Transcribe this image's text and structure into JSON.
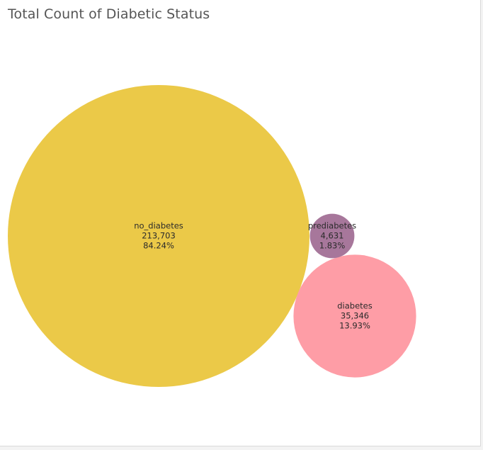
{
  "title": "Total Count of Diabetic Status",
  "chart_data": {
    "type": "bubble",
    "title": "Total Count of Diabetic Status",
    "series": [
      {
        "name": "no_diabetes",
        "count": 213703,
        "count_label": "213,703",
        "percent_label": "84.24%",
        "color": "#EBC948"
      },
      {
        "name": "prediabetes",
        "count": 4631,
        "count_label": "4,631",
        "percent_label": "1.83%",
        "color": "#A7779B"
      },
      {
        "name": "diabetes",
        "count": 35346,
        "count_label": "35,346",
        "percent_label": "13.93%",
        "color": "#FE9DA6"
      }
    ]
  }
}
